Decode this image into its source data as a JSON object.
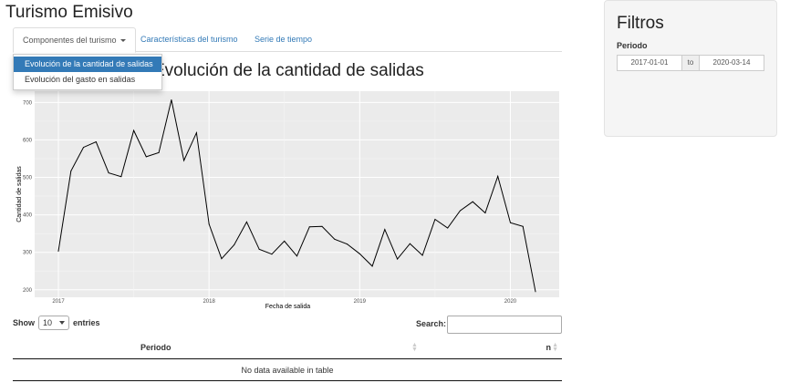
{
  "app": {
    "title": "Turismo Emisivo"
  },
  "nav": {
    "tabs": [
      {
        "label": "Componentes del turismo"
      },
      {
        "label": "Características del turismo"
      },
      {
        "label": "Serie de tiempo"
      }
    ],
    "dropdown": [
      {
        "label": "Evolución de la cantidad de salidas",
        "active": true
      },
      {
        "label": "Evolución del gasto en salidas",
        "active": false
      }
    ]
  },
  "main": {
    "chart_title": "Evolución de la cantidad de salidas"
  },
  "chart_data": {
    "type": "line",
    "xlabel": "Fecha de salida",
    "ylabel": "Cantidad de salidas",
    "x": [
      "2017-01",
      "2017-02",
      "2017-03",
      "2017-04",
      "2017-05",
      "2017-06",
      "2017-07",
      "2017-08",
      "2017-09",
      "2017-10",
      "2017-11",
      "2017-12",
      "2018-01",
      "2018-02",
      "2018-03",
      "2018-04",
      "2018-05",
      "2018-06",
      "2018-07",
      "2018-08",
      "2018-09",
      "2018-10",
      "2018-11",
      "2018-12",
      "2019-01",
      "2019-02",
      "2019-03",
      "2019-04",
      "2019-05",
      "2019-06",
      "2019-07",
      "2019-08",
      "2019-09",
      "2019-10",
      "2019-11",
      "2019-12",
      "2020-01",
      "2020-02",
      "2020-03"
    ],
    "values": [
      303,
      517,
      580,
      595,
      512,
      502,
      625,
      555,
      566,
      707,
      545,
      619,
      375,
      283,
      320,
      381,
      308,
      295,
      330,
      290,
      368,
      369,
      335,
      322,
      296,
      263,
      361,
      282,
      323,
      292,
      388,
      365,
      411,
      435,
      405,
      503,
      379,
      369,
      195
    ],
    "xticks": [
      "2017",
      "2018",
      "2019",
      "2020"
    ],
    "yticks": [
      200,
      300,
      400,
      500,
      600,
      700
    ],
    "ylim": [
      180,
      730
    ],
    "grid": true,
    "background": "#ebebeb",
    "line_color": "#000000"
  },
  "table": {
    "show_label": "Show",
    "entries_value": "10",
    "entries_label": "entries",
    "search_label": "Search:",
    "columns": [
      "Periodo",
      "n"
    ],
    "empty_message": "No data available in table"
  },
  "sidebar": {
    "title": "Filtros",
    "periodo_label": "Periodo",
    "date_from": "2017-01-01",
    "date_sep": "to",
    "date_to": "2020-03-14"
  }
}
